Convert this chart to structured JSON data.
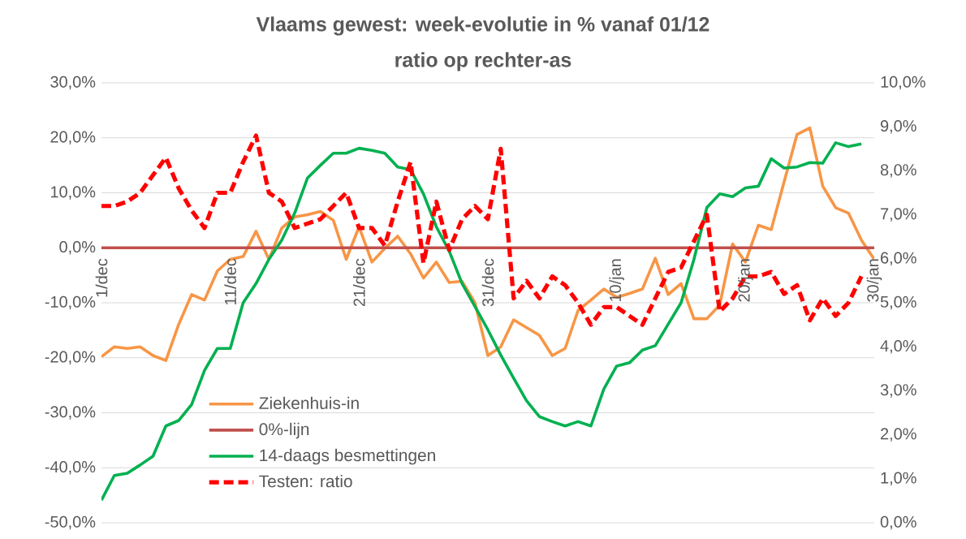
{
  "chart_data": {
    "type": "line",
    "title": "Vlaams gewest: week-evolutie in %  vanaf 01/12",
    "subtitle": "ratio op rechter-as",
    "categories": [
      "1/dec",
      null,
      null,
      null,
      null,
      null,
      null,
      null,
      null,
      null,
      "11/dec",
      null,
      null,
      null,
      null,
      null,
      null,
      null,
      null,
      null,
      "21/dec",
      null,
      null,
      null,
      null,
      null,
      null,
      null,
      null,
      null,
      "31/dec",
      null,
      null,
      null,
      null,
      null,
      null,
      null,
      null,
      null,
      "10/jan",
      null,
      null,
      null,
      null,
      null,
      null,
      null,
      null,
      null,
      "20/jan",
      null,
      null,
      null,
      null,
      null,
      null,
      null,
      null,
      null,
      "30/jan"
    ],
    "ylim": [
      -50,
      30
    ],
    "yticks": [
      {
        "value": -50,
        "label": "-50,0%"
      },
      {
        "value": -40,
        "label": "-40,0%"
      },
      {
        "value": -30,
        "label": "-30,0%"
      },
      {
        "value": -20,
        "label": "-20,0%"
      },
      {
        "value": -10,
        "label": "-10,0%"
      },
      {
        "value": 0,
        "label": "0,0%"
      },
      {
        "value": 10,
        "label": "10,0%"
      },
      {
        "value": 20,
        "label": "20,0%"
      },
      {
        "value": 30,
        "label": "30,0%"
      }
    ],
    "y2lim": [
      0,
      10
    ],
    "y2ticks": [
      {
        "value": 0,
        "label": "0,0%"
      },
      {
        "value": 1,
        "label": "1,0%"
      },
      {
        "value": 2,
        "label": "2,0%"
      },
      {
        "value": 3,
        "label": "3,0%"
      },
      {
        "value": 4,
        "label": "4,0%"
      },
      {
        "value": 5,
        "label": "5,0%"
      },
      {
        "value": 6,
        "label": "6,0%"
      },
      {
        "value": 7,
        "label": "7,0%"
      },
      {
        "value": 8,
        "label": "8,0%"
      },
      {
        "value": 9,
        "label": "9,0%"
      },
      {
        "value": 10,
        "label": "10,0%"
      }
    ],
    "grid": "y",
    "legend": "bottom left",
    "series": [
      {
        "name": "Ziekenhuis-in",
        "color": "#f79646",
        "values": [
          -19.8,
          -18,
          -18.3,
          -18,
          -19.6,
          -20.5,
          -13.9,
          -8.5,
          -9.5,
          -4.2,
          -2.1,
          -1.6,
          3,
          -2.1,
          3.6,
          5.6,
          6,
          6.6,
          5,
          -2.1,
          3.8,
          -2.6,
          -0.1,
          2.1,
          -1.1,
          -5.5,
          -2.6,
          -6.3,
          -6.1,
          -10,
          -19.6,
          -18,
          -13.1,
          -14.5,
          -15.9,
          -19.6,
          -18.3,
          -11.4,
          -9.5,
          -7.5,
          -9,
          -8.3,
          -7.5,
          -1.9,
          -8.5,
          -6.5,
          -12.9,
          -12.9,
          -10.4,
          0.7,
          -2.6,
          4.1,
          3.3,
          12,
          20.6,
          21.8,
          11.2,
          7.3,
          6.3,
          1.4,
          -2.1
        ]
      },
      {
        "name": "0%-lijn",
        "color": "#c0504d",
        "values": [
          0,
          0,
          0,
          0,
          0,
          0,
          0,
          0,
          0,
          0,
          0,
          0,
          0,
          0,
          0,
          0,
          0,
          0,
          0,
          0,
          0,
          0,
          0,
          0,
          0,
          0,
          0,
          0,
          0,
          0,
          0,
          0,
          0,
          0,
          0,
          0,
          0,
          0,
          0,
          0,
          0,
          0,
          0,
          0,
          0,
          0,
          0,
          0,
          0,
          0,
          0,
          0,
          0,
          0,
          0,
          0,
          0,
          0,
          0,
          0,
          0
        ]
      },
      {
        "name": "14-daags besmettingen",
        "color": "#00b050",
        "values": [
          -45.9,
          -41.4,
          -41,
          -39.5,
          -37.9,
          -32.4,
          -31.4,
          -28.5,
          -22.3,
          -18.3,
          -18.3,
          -10,
          -6.5,
          -2.1,
          1.4,
          6.3,
          12.7,
          15,
          17.2,
          17.2,
          18.1,
          17.7,
          17.2,
          14.7,
          14.2,
          9.8,
          3.8,
          -0.6,
          -6.5,
          -10.7,
          -14.9,
          -19.5,
          -23.7,
          -27.8,
          -30.7,
          -31.6,
          -32.4,
          -31.6,
          -32.4,
          -25.7,
          -21.5,
          -20.9,
          -18.6,
          -17.8,
          -13.9,
          -10,
          -2.1,
          7.3,
          9.8,
          9.3,
          10.9,
          11.2,
          16.2,
          14.5,
          14.7,
          15.5,
          15.4,
          19.1,
          18.4,
          18.9,
          null
        ]
      },
      {
        "name": "Testen: ratio",
        "color": "#ff0000",
        "axis": "y2",
        "line_style": "dashed",
        "values": [
          7.2,
          7.2,
          7.3,
          7.5,
          7.9,
          8.3,
          7.6,
          7.1,
          6.7,
          7.5,
          7.5,
          8.2,
          8.8,
          7.5,
          7.3,
          6.7,
          6.8,
          6.9,
          7.2,
          7.5,
          6.7,
          6.7,
          6.3,
          7.3,
          8.2,
          5.9,
          7.3,
          6.2,
          6.9,
          7.2,
          6.9,
          8.5,
          5.1,
          5.5,
          5.1,
          5.6,
          5.4,
          5,
          4.5,
          4.9,
          4.9,
          4.7,
          4.5,
          5.1,
          5.7,
          5.8,
          6.4,
          7,
          4.8,
          5.1,
          5.6,
          5.6,
          5.7,
          5.2,
          5.4,
          4.6,
          5.1,
          4.7,
          5,
          5.6,
          null
        ]
      }
    ]
  }
}
